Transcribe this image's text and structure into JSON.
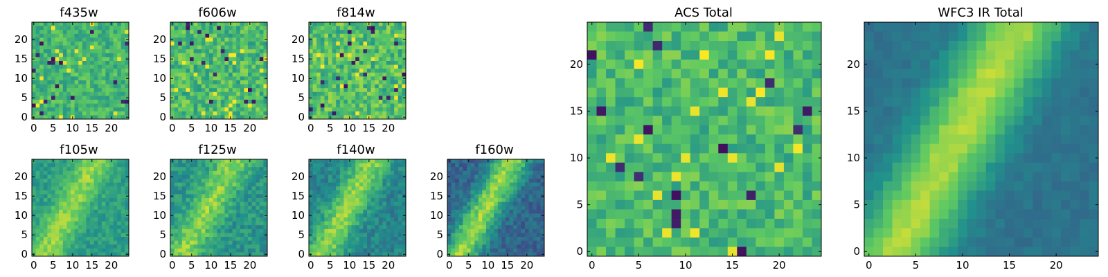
{
  "figure": {
    "colormap": "viridis",
    "colormap_stops": [
      "#440154",
      "#3b528b",
      "#21918c",
      "#5ec962",
      "#fde725"
    ]
  },
  "chart_data": [
    {
      "type": "heatmap",
      "title": "f435w",
      "grid_size": [
        25,
        25
      ],
      "xlim": [
        -0.5,
        24.5
      ],
      "ylim": [
        -0.5,
        24.5
      ],
      "xticks": [
        0,
        5,
        10,
        15,
        20
      ],
      "yticks": [
        0,
        5,
        10,
        15,
        20
      ],
      "pattern": "noise",
      "seed": 11,
      "mean_level": 0.66,
      "spread": 0.13
    },
    {
      "type": "heatmap",
      "title": "f606w",
      "grid_size": [
        25,
        25
      ],
      "xlim": [
        -0.5,
        24.5
      ],
      "ylim": [
        -0.5,
        24.5
      ],
      "xticks": [
        0,
        5,
        10,
        15,
        20
      ],
      "yticks": [
        0,
        5,
        10,
        15,
        20
      ],
      "pattern": "noise",
      "seed": 23,
      "mean_level": 0.68,
      "spread": 0.16
    },
    {
      "type": "heatmap",
      "title": "f814w",
      "grid_size": [
        25,
        25
      ],
      "xlim": [
        -0.5,
        24.5
      ],
      "ylim": [
        -0.5,
        24.5
      ],
      "xticks": [
        0,
        5,
        10,
        15,
        20
      ],
      "yticks": [
        0,
        5,
        10,
        15,
        20
      ],
      "pattern": "noise",
      "seed": 37,
      "mean_level": 0.7,
      "spread": 0.17
    },
    {
      "type": "heatmap",
      "title": "f105w",
      "grid_size": [
        25,
        25
      ],
      "xlim": [
        -0.5,
        24.5
      ],
      "ylim": [
        -0.5,
        24.5
      ],
      "xticks": [
        0,
        5,
        10,
        15,
        20
      ],
      "yticks": [
        0,
        5,
        10,
        15,
        20
      ],
      "pattern": "diagonal_band",
      "seed": 41,
      "base_level": 0.55,
      "band_amplitude": 0.28,
      "noise": 0.09
    },
    {
      "type": "heatmap",
      "title": "f125w",
      "grid_size": [
        25,
        25
      ],
      "xlim": [
        -0.5,
        24.5
      ],
      "ylim": [
        -0.5,
        24.5
      ],
      "xticks": [
        0,
        5,
        10,
        15,
        20
      ],
      "yticks": [
        0,
        5,
        10,
        15,
        20
      ],
      "pattern": "diagonal_band",
      "seed": 53,
      "base_level": 0.52,
      "band_amplitude": 0.3,
      "noise": 0.11
    },
    {
      "type": "heatmap",
      "title": "f140w",
      "grid_size": [
        25,
        25
      ],
      "xlim": [
        -0.5,
        24.5
      ],
      "ylim": [
        -0.5,
        24.5
      ],
      "xticks": [
        0,
        5,
        10,
        15,
        20
      ],
      "yticks": [
        0,
        5,
        10,
        15,
        20
      ],
      "pattern": "diagonal_band",
      "seed": 67,
      "base_level": 0.45,
      "band_amplitude": 0.38,
      "noise": 0.1
    },
    {
      "type": "heatmap",
      "title": "f160w",
      "grid_size": [
        25,
        25
      ],
      "xlim": [
        -0.5,
        24.5
      ],
      "ylim": [
        -0.5,
        24.5
      ],
      "xticks": [
        0,
        5,
        10,
        15,
        20
      ],
      "yticks": [
        0,
        5,
        10,
        15,
        20
      ],
      "pattern": "diagonal_band",
      "seed": 79,
      "base_level": 0.32,
      "band_amplitude": 0.52,
      "noise": 0.1
    },
    {
      "type": "heatmap",
      "title": "ACS Total",
      "grid_size": [
        25,
        25
      ],
      "xlim": [
        -0.5,
        24.5
      ],
      "ylim": [
        -0.5,
        24.5
      ],
      "xticks": [
        0,
        5,
        10,
        15,
        20
      ],
      "yticks": [
        0,
        5,
        10,
        15,
        20
      ],
      "pattern": "noise",
      "seed": 97,
      "mean_level": 0.68,
      "spread": 0.14
    },
    {
      "type": "heatmap",
      "title": "WFC3 IR Total",
      "grid_size": [
        25,
        25
      ],
      "xlim": [
        -0.5,
        24.5
      ],
      "ylim": [
        -0.5,
        24.5
      ],
      "xticks": [
        0,
        5,
        10,
        15,
        20
      ],
      "yticks": [
        0,
        5,
        10,
        15,
        20
      ],
      "pattern": "diagonal_band",
      "seed": 101,
      "base_level": 0.38,
      "band_amplitude": 0.5,
      "noise": 0.04
    }
  ]
}
